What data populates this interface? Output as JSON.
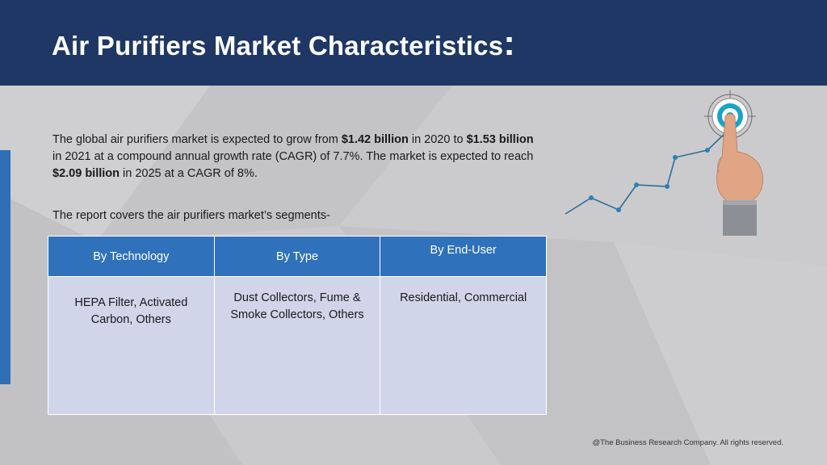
{
  "header": {
    "title": "Air Purifiers Market Characteristics",
    "title_colon": ":"
  },
  "body": {
    "p1_a": "The global air purifiers market is expected to grow from ",
    "p1_b": "$1.42 billion",
    "p1_c": " in 2020 to ",
    "p1_d": "$1.53 billion",
    "p1_e": " in 2021 at a compound annual growth rate (CAGR) of 7.7%. The market is expected to reach ",
    "p1_f": "$2.09 billion",
    "p1_g": " in 2025 at a CAGR of 8%.",
    "intro": "The report covers the air purifiers market’s segments-"
  },
  "table": {
    "headers": [
      "By Technology",
      "By Type",
      "By End-User"
    ],
    "cells": [
      "HEPA Filter, Activated Carbon, Others",
      "Dust Collectors, Fume & Smoke Collectors, Others",
      "Residential, Commercial"
    ]
  },
  "footer": {
    "copyright": "@The Business Research Company. All rights reserved."
  },
  "icons": {
    "graphic": "growth-chart-target-hand-icon"
  },
  "colors": {
    "header_bg": "#1e3765",
    "table_header": "#2f71ba",
    "table_cell": "#d0d5ea",
    "accent_bar": "#2f6fb8",
    "target_teal": "#1aa3c7"
  }
}
